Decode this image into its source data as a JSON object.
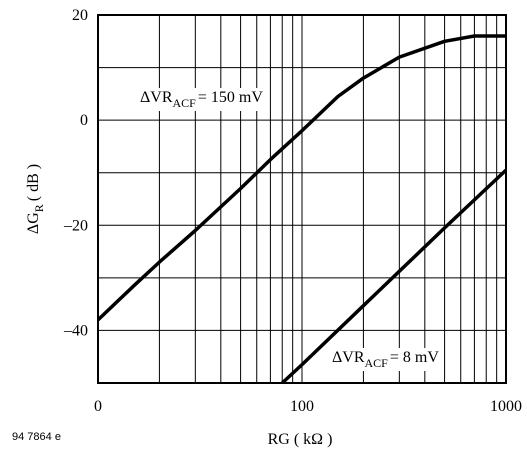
{
  "chart_data": {
    "type": "line",
    "x_label": {
      "main": "RG",
      "unit": "( kΩ )"
    },
    "y_label": {
      "main": "ΔG",
      "subscript": "R",
      "unit": "( dB )"
    },
    "figure_code": "94 7864 e",
    "xlog": true,
    "xlim": [
      10,
      1000
    ],
    "xticks": [
      {
        "value": 10,
        "label": "0"
      },
      100,
      1000
    ],
    "xgrid": [
      20,
      30,
      40,
      50,
      60,
      70,
      80,
      90,
      200,
      300,
      400,
      500,
      600,
      700,
      800,
      900
    ],
    "ylim": [
      -50,
      20
    ],
    "yticks": [
      {
        "value": 20,
        "label": "20"
      },
      0,
      {
        "value": -20,
        "label": "–20"
      },
      {
        "value": -40,
        "label": "–40"
      }
    ],
    "ygrid": [
      10,
      -10,
      -30
    ],
    "grid": true,
    "series": [
      {
        "name": "ΔVR",
        "subscript": "ACF",
        "suffix": "= 150 mV",
        "color": "#000000",
        "x": [
          10,
          15,
          20,
          30,
          50,
          70,
          100,
          150,
          200,
          300,
          500,
          700,
          1000
        ],
        "values": [
          -38,
          -31.5,
          -27,
          -21,
          -13,
          -7.5,
          -2,
          4.5,
          8,
          12,
          15,
          16,
          16
        ]
      },
      {
        "name": "ΔVR",
        "subscript": "ACF",
        "suffix": "= 8 mV",
        "color": "#000000",
        "x": [
          80,
          100,
          200,
          500,
          1000
        ],
        "values": [
          -50,
          -46.5,
          -35.3,
          -20.5,
          -9.5
        ]
      }
    ]
  }
}
